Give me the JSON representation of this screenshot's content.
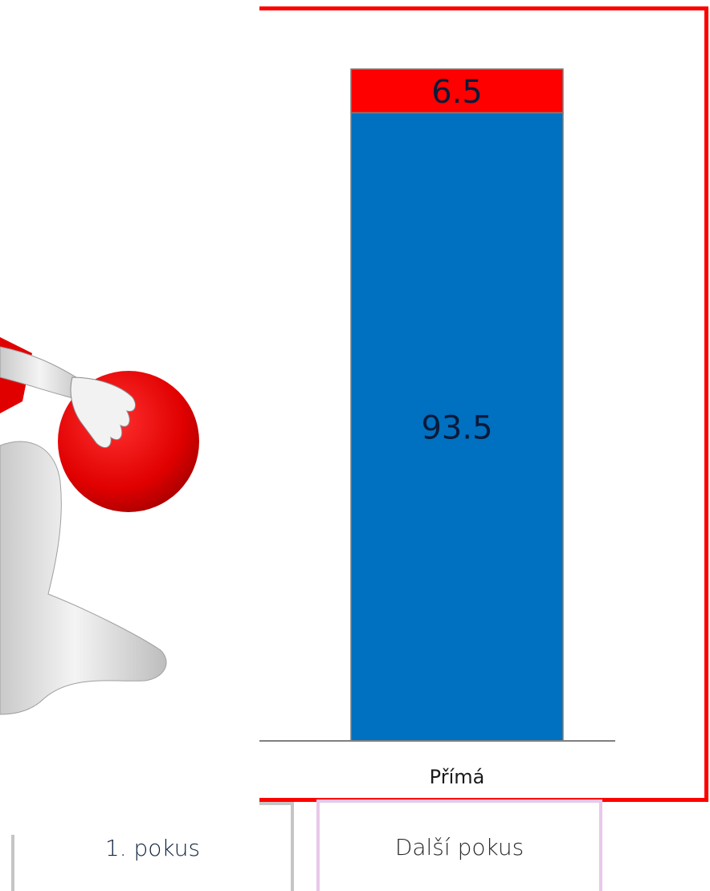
{
  "chart_data": {
    "type": "bar",
    "stacked": true,
    "categories": [
      "Přímá"
    ],
    "series": [
      {
        "name": "1. pokus",
        "values": [
          93.5
        ],
        "color": "#0070c0"
      },
      {
        "name": "Další pokus",
        "values": [
          6.5
        ],
        "color": "#ff0000"
      }
    ],
    "data_labels": [
      "93.5",
      "6.5"
    ],
    "ylim": [
      0,
      100
    ],
    "grid": false,
    "legend_position": "bottom"
  },
  "colors": {
    "frame": "#ff0000",
    "axis": "#7f7f7f",
    "label_text": "#0b1a3a"
  },
  "figure": {
    "icon": "person-holding-ball-icon"
  }
}
